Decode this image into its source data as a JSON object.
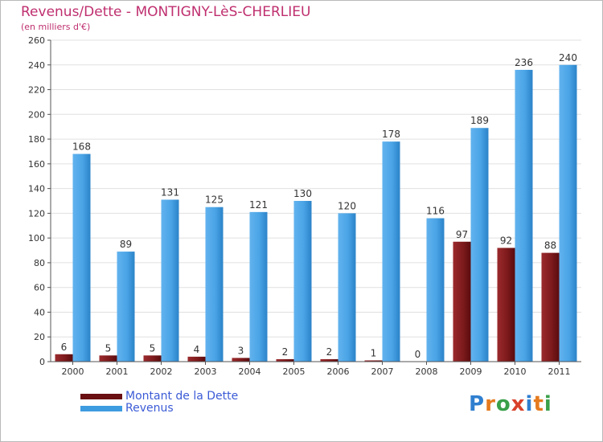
{
  "header": {
    "title": "Revenus/Dette - MONTIGNY-LèS-CHERLIEU",
    "subtitle": "(en milliers d'€)"
  },
  "legend": {
    "debt_label": "Montant de la Dette",
    "revenue_label": "Revenus"
  },
  "logo": {
    "text": "Proxiti"
  },
  "colors": {
    "debt": "#7a1518",
    "revenue": "#3d9be0",
    "title": "#bf2f6f",
    "legend_text": "#3b5bd6",
    "grid": "#e0e0e0"
  },
  "chart_data": {
    "type": "bar",
    "title": "Revenus/Dette - MONTIGNY-LèS-CHERLIEU",
    "ylabel": "(en milliers d'€)",
    "xlabel": "",
    "categories": [
      "2000",
      "2001",
      "2002",
      "2003",
      "2004",
      "2005",
      "2006",
      "2007",
      "2008",
      "2009",
      "2010",
      "2011"
    ],
    "series": [
      {
        "name": "Montant de la Dette",
        "values": [
          6,
          5,
          5,
          4,
          3,
          2,
          2,
          1,
          0,
          97,
          92,
          88
        ]
      },
      {
        "name": "Revenus",
        "values": [
          168,
          89,
          131,
          125,
          121,
          130,
          120,
          178,
          116,
          189,
          236,
          240
        ]
      }
    ],
    "ylim": [
      0,
      260
    ],
    "yticks": [
      0,
      20,
      40,
      60,
      80,
      100,
      120,
      140,
      160,
      180,
      200,
      220,
      240,
      260
    ],
    "grid": true,
    "legend_position": "bottom-left"
  }
}
